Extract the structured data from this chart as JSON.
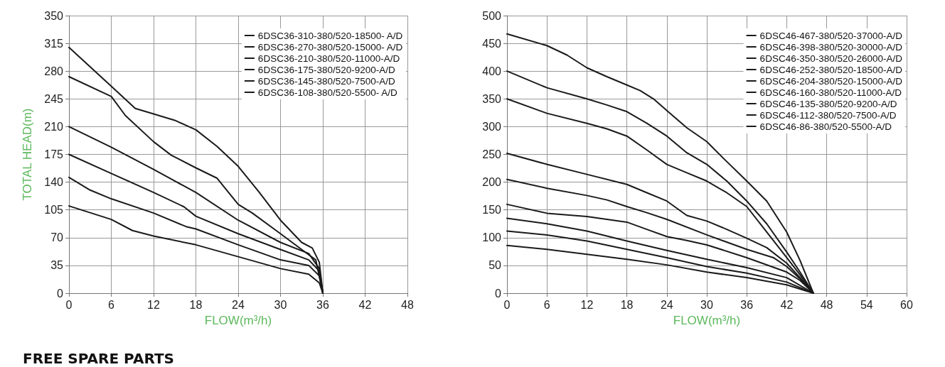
{
  "chart_data": [
    {
      "type": "line",
      "ylabel": "TOTAL HEAD(m)",
      "xlabel": "FLOW(m³/h)",
      "xlim": [
        0,
        48
      ],
      "xticks": [
        0,
        6,
        12,
        18,
        24,
        30,
        36,
        42,
        48
      ],
      "ylim": [
        0,
        350
      ],
      "yticks": [
        0,
        35,
        70,
        105,
        140,
        175,
        210,
        245,
        280,
        315,
        350
      ],
      "grid": true,
      "legend": "top right",
      "marker": "none",
      "line_style": "solid",
      "annotations": [
        "FREE SPARE PARTS"
      ],
      "series": [
        {
          "name": "6DSC36-310-380/520-18500- A/D",
          "color": "#1a1a1a",
          "x": [
            0,
            6,
            9.4,
            12,
            15,
            18,
            21,
            24,
            27,
            30,
            33,
            34.5,
            35.5,
            36
          ],
          "values": [
            310,
            261,
            233,
            226,
            218,
            206,
            185,
            160,
            127,
            92,
            64,
            57,
            39,
            0
          ]
        },
        {
          "name": "6DSC36-270-380/520-15000- A/D",
          "color": "#1a1a1a",
          "x": [
            0,
            6,
            8,
            12,
            14.5,
            18,
            21,
            22,
            24,
            26,
            30,
            33,
            35,
            36
          ],
          "values": [
            273,
            248,
            224,
            191,
            174,
            158,
            145,
            134,
            112,
            101,
            75,
            55,
            42,
            0
          ]
        },
        {
          "name": "6DSC36-210-380/520-11000-A/D",
          "color": "#1a1a1a",
          "x": [
            0,
            6,
            12,
            18,
            24,
            30,
            34,
            35.5,
            36
          ],
          "values": [
            210,
            184,
            156,
            127,
            92,
            64,
            50,
            31,
            0
          ]
        },
        {
          "name": "6DSC36-175-380/520-9200-A/D",
          "color": "#1a1a1a",
          "x": [
            0,
            6,
            12,
            16.3,
            18,
            24,
            30,
            34,
            35.5,
            36
          ],
          "values": [
            175,
            151,
            127,
            109,
            97,
            75,
            55,
            42,
            28,
            0
          ]
        },
        {
          "name": "6DSC36-145-380/520-7500-A/D",
          "color": "#1a1a1a",
          "x": [
            0,
            3,
            6,
            12,
            16.6,
            18,
            24,
            30,
            34,
            35.5,
            36
          ],
          "values": [
            146,
            130,
            119,
            101,
            84,
            81,
            61,
            42,
            35,
            22,
            0
          ]
        },
        {
          "name": "6DSC36-108-380/520-5500- A/D",
          "color": "#1a1a1a",
          "x": [
            0,
            6,
            9,
            12,
            18,
            24,
            30,
            34,
            35.5,
            36
          ],
          "values": [
            110,
            93,
            79,
            72,
            61,
            46,
            31,
            24,
            13,
            0
          ]
        }
      ]
    },
    {
      "type": "line",
      "xlabel": "FLOW(m³/h)",
      "xlim": [
        0,
        60
      ],
      "xticks": [
        0,
        6,
        12,
        18,
        24,
        30,
        36,
        42,
        48,
        54,
        60
      ],
      "ylim": [
        0,
        500
      ],
      "yticks": [
        0,
        50,
        100,
        150,
        200,
        250,
        300,
        350,
        400,
        450,
        500
      ],
      "grid": true,
      "legend": "top right",
      "marker": "none",
      "line_style": "solid",
      "series": [
        {
          "name": "6DSC46-467-380/520-37000-A/D",
          "color": "#1a1a1a",
          "x": [
            0,
            6,
            9,
            12,
            15,
            18,
            20,
            22,
            24,
            27,
            30,
            33,
            36,
            39,
            42,
            44,
            46
          ],
          "values": [
            467,
            446,
            429,
            406,
            390,
            375,
            365,
            350,
            329,
            298,
            273,
            237,
            202,
            166,
            110,
            59,
            0
          ]
        },
        {
          "name": "6DSC46-398-380/520-30000-A/D",
          "color": "#1a1a1a",
          "x": [
            0,
            6,
            12,
            15,
            18,
            21,
            24,
            27,
            30,
            33,
            36,
            39,
            42,
            44,
            46
          ],
          "values": [
            400,
            370,
            350,
            339,
            327,
            306,
            283,
            253,
            232,
            202,
            166,
            125,
            74,
            38,
            0
          ]
        },
        {
          "name": "6DSC46-350-380/520-26000-A/D",
          "color": "#1a1a1a",
          "x": [
            0,
            6,
            12,
            15,
            18,
            21,
            24,
            27,
            30,
            33,
            36,
            39,
            42,
            44,
            46
          ],
          "values": [
            350,
            324,
            306,
            296,
            283,
            258,
            232,
            217,
            202,
            181,
            156,
            110,
            64,
            33,
            0
          ]
        },
        {
          "name": "6DSC46-252-380/520-18500-A/D",
          "color": "#1a1a1a",
          "x": [
            0,
            6,
            12,
            18,
            21,
            24,
            27,
            30,
            33,
            36,
            39,
            42,
            44,
            46
          ],
          "values": [
            252,
            232,
            214,
            196,
            181,
            166,
            140,
            130,
            115,
            99,
            82,
            54,
            28,
            0
          ]
        },
        {
          "name": "6DSC46-204-380/520-15000-A/D",
          "color": "#1a1a1a",
          "x": [
            0,
            6,
            12,
            15,
            18,
            21,
            24,
            30,
            36,
            40,
            42,
            44,
            46
          ],
          "values": [
            205,
            189,
            176,
            168,
            156,
            145,
            133,
            105,
            79,
            64,
            48,
            26,
            0
          ]
        },
        {
          "name": "6DSC46-160-380/520-11000-A/D",
          "color": "#1a1a1a",
          "x": [
            0,
            6,
            12,
            18,
            21,
            24,
            27,
            30,
            36,
            42,
            44,
            46
          ],
          "values": [
            160,
            144,
            138,
            128,
            115,
            102,
            95,
            87,
            64,
            38,
            23,
            0
          ]
        },
        {
          "name": "6DSC46-135-380/520-9200-A/D",
          "color": "#1a1a1a",
          "x": [
            0,
            6,
            12,
            18,
            24,
            30,
            36,
            42,
            46
          ],
          "values": [
            135,
            125,
            112,
            94,
            77,
            61,
            46,
            28,
            0
          ]
        },
        {
          "name": "6DSC46-112-380/520-7500-A/D",
          "color": "#1a1a1a",
          "x": [
            0,
            6,
            12,
            18,
            24,
            30,
            36,
            42,
            46
          ],
          "values": [
            112,
            105,
            94,
            79,
            64,
            48,
            36,
            20,
            0
          ]
        },
        {
          "name": "6DSC46-86-380/520-5500-A/D",
          "color": "#1a1a1a",
          "x": [
            0,
            6,
            12,
            18,
            24,
            30,
            36,
            42,
            46
          ],
          "values": [
            86,
            79,
            70,
            61,
            51,
            38,
            28,
            15,
            0
          ]
        }
      ]
    }
  ]
}
